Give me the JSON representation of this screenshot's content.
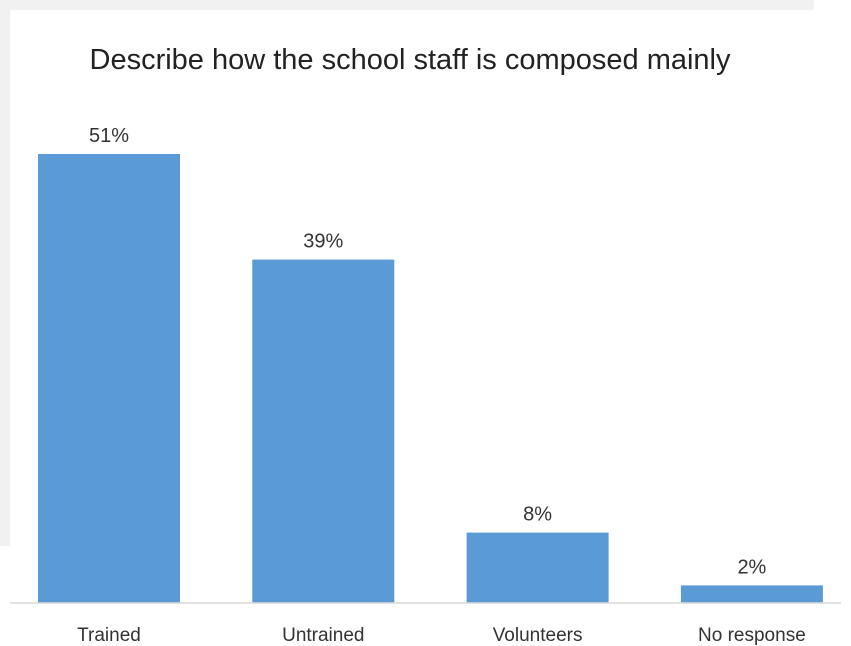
{
  "chart_data": {
    "type": "bar",
    "title": "Describe how the school staff is composed mainly",
    "categories": [
      "Trained",
      "Untrained",
      "Volunteers",
      "No response"
    ],
    "values": [
      51,
      39,
      8,
      2
    ],
    "value_labels": [
      "51%",
      "39%",
      "8%",
      "2%"
    ],
    "unit": "%",
    "xlabel": "",
    "ylabel": "",
    "grid": false,
    "legend": "none",
    "bar_color": "#5b9bd5"
  }
}
